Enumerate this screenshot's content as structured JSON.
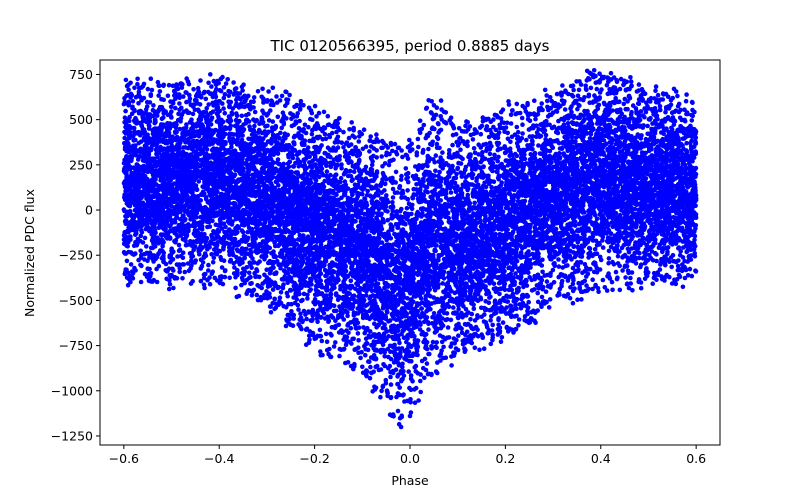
{
  "chart_data": {
    "type": "scatter",
    "title": "TIC 0120566395, period 0.8885 days",
    "xlabel": "Phase",
    "ylabel": "Normalized PDC flux",
    "xlim": [
      -0.65,
      0.65
    ],
    "ylim": [
      -1300,
      830
    ],
    "xticks": [
      -0.6,
      -0.4,
      -0.2,
      0.0,
      0.2,
      0.4,
      0.6
    ],
    "xtick_labels": [
      "−0.6",
      "−0.4",
      "−0.2",
      "0.0",
      "0.2",
      "0.4",
      "0.6"
    ],
    "yticks": [
      750,
      500,
      250,
      0,
      -250,
      -500,
      -750,
      -1000,
      -1250
    ],
    "ytick_labels": [
      "750",
      "500",
      "250",
      "0",
      "−250",
      "−500",
      "−750",
      "−1000",
      "−1250"
    ],
    "grid": false,
    "marker_color": "#0000ff",
    "series": [
      {
        "name": "phased light curve",
        "n_points_approx": 14000,
        "phase_range": [
          -0.6,
          0.6
        ],
        "baseline_band": [
          -250,
          530
        ],
        "upper_envelope": [
          {
            "phase": -0.6,
            "flux": 700
          },
          {
            "phase": -0.4,
            "flux": 720
          },
          {
            "phase": -0.3,
            "flux": 650
          },
          {
            "phase": -0.2,
            "flux": 560
          },
          {
            "phase": -0.1,
            "flux": 430
          },
          {
            "phase": 0.0,
            "flux": 350
          },
          {
            "phase": 0.05,
            "flux": 640
          },
          {
            "phase": 0.1,
            "flux": 430
          },
          {
            "phase": 0.2,
            "flux": 560
          },
          {
            "phase": 0.3,
            "flux": 640
          },
          {
            "phase": 0.4,
            "flux": 780
          },
          {
            "phase": 0.5,
            "flux": 650
          },
          {
            "phase": 0.6,
            "flux": 620
          }
        ],
        "lower_envelope": [
          {
            "phase": -0.6,
            "flux": -400
          },
          {
            "phase": -0.4,
            "flux": -400
          },
          {
            "phase": -0.3,
            "flux": -520
          },
          {
            "phase": -0.2,
            "flux": -760
          },
          {
            "phase": -0.1,
            "flux": -880
          },
          {
            "phase": -0.02,
            "flux": -1200
          },
          {
            "phase": 0.0,
            "flux": -1100
          },
          {
            "phase": 0.05,
            "flux": -900
          },
          {
            "phase": 0.1,
            "flux": -800
          },
          {
            "phase": 0.2,
            "flux": -700
          },
          {
            "phase": 0.3,
            "flux": -520
          },
          {
            "phase": 0.4,
            "flux": -420
          },
          {
            "phase": 0.6,
            "flux": -380
          }
        ],
        "dip_center_phase": -0.01,
        "dip_depth": -1200
      }
    ]
  }
}
